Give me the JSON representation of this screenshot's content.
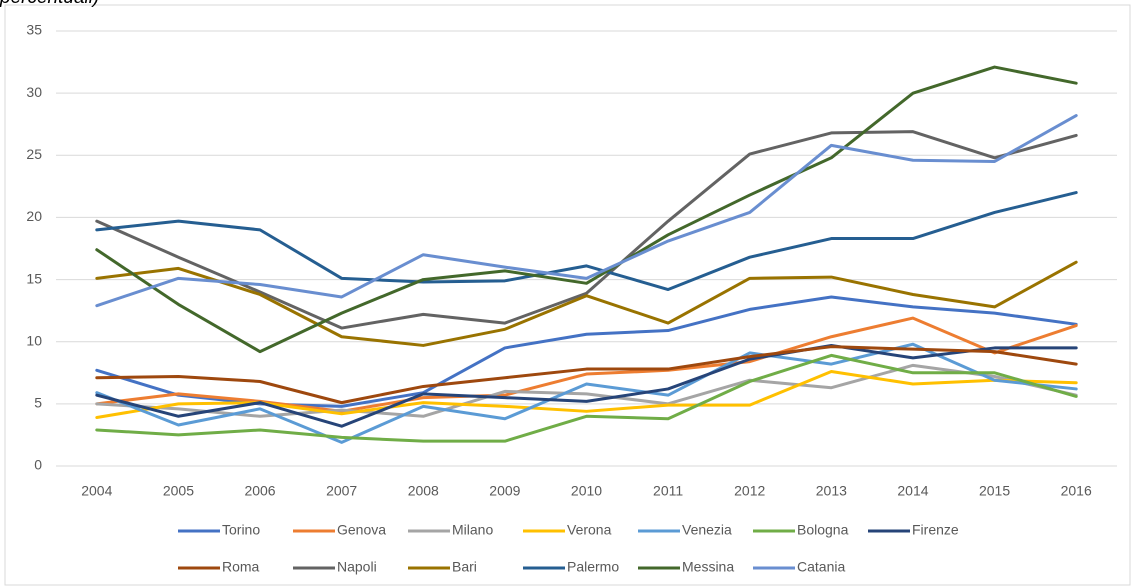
{
  "chart_data": {
    "type": "line",
    "title": "percentuali)",
    "categories": [
      "2004",
      "2005",
      "2006",
      "2007",
      "2008",
      "2009",
      "2010",
      "2011",
      "2012",
      "2013",
      "2014",
      "2015",
      "2016"
    ],
    "ylim": [
      0,
      35
    ],
    "yticks": [
      0,
      5,
      10,
      15,
      20,
      25,
      30,
      35
    ],
    "grid": true,
    "series": [
      {
        "name": "Torino",
        "color": "#4472c4",
        "values": [
          7.7,
          5.7,
          5.0,
          4.8,
          5.9,
          9.5,
          10.6,
          10.9,
          12.6,
          13.6,
          12.8,
          12.3,
          11.4
        ]
      },
      {
        "name": "Genova",
        "color": "#ed7d31",
        "values": [
          5.0,
          5.8,
          5.2,
          4.4,
          5.5,
          5.7,
          7.4,
          7.7,
          8.4,
          10.4,
          11.9,
          9.1,
          11.3
        ]
      },
      {
        "name": "Milano",
        "color": "#a5a5a5",
        "values": [
          5.0,
          4.6,
          4.0,
          4.5,
          4.0,
          6.0,
          5.8,
          5.0,
          6.9,
          6.3,
          8.1,
          7.2,
          5.7
        ]
      },
      {
        "name": "Verona",
        "color": "#ffc000",
        "values": [
          3.9,
          5.0,
          5.1,
          4.2,
          5.1,
          4.8,
          4.4,
          4.9,
          4.9,
          7.6,
          6.6,
          6.9,
          6.7
        ]
      },
      {
        "name": "Venezia",
        "color": "#5b9bd5",
        "values": [
          5.9,
          3.3,
          4.6,
          1.9,
          4.8,
          3.8,
          6.6,
          5.7,
          9.1,
          8.2,
          9.8,
          6.9,
          6.2
        ]
      },
      {
        "name": "Bologna",
        "color": "#70ad47",
        "values": [
          2.9,
          2.5,
          2.9,
          2.3,
          2.0,
          2.0,
          4.0,
          3.8,
          6.8,
          8.9,
          7.5,
          7.5,
          5.6
        ]
      },
      {
        "name": "Firenze",
        "color": "#264478",
        "values": [
          5.7,
          4.0,
          5.1,
          3.2,
          5.8,
          5.5,
          5.2,
          6.2,
          8.6,
          9.7,
          8.7,
          9.5,
          9.5
        ]
      },
      {
        "name": "Roma",
        "color": "#9e480e",
        "values": [
          7.1,
          7.2,
          6.8,
          5.1,
          6.4,
          7.1,
          7.8,
          7.8,
          8.8,
          9.6,
          9.4,
          9.2,
          8.2
        ]
      },
      {
        "name": "Napoli",
        "color": "#636363",
        "values": [
          19.7,
          16.8,
          14.0,
          11.1,
          12.2,
          11.5,
          13.9,
          19.7,
          25.1,
          26.8,
          26.9,
          24.8,
          26.6
        ]
      },
      {
        "name": "Bari",
        "color": "#997300",
        "values": [
          15.1,
          15.9,
          13.8,
          10.4,
          9.7,
          11.0,
          13.7,
          11.5,
          15.1,
          15.2,
          13.8,
          12.8,
          16.4
        ]
      },
      {
        "name": "Palermo",
        "color": "#255e91",
        "values": [
          19.0,
          19.7,
          19.0,
          15.1,
          14.8,
          14.9,
          16.1,
          14.2,
          16.8,
          18.3,
          18.3,
          20.4,
          22.0
        ]
      },
      {
        "name": "Messina",
        "color": "#43682b",
        "values": [
          17.4,
          13.0,
          9.2,
          12.3,
          15.0,
          15.7,
          14.7,
          18.6,
          21.8,
          24.8,
          30.0,
          32.1,
          30.8
        ]
      },
      {
        "name": "Catania",
        "color": "#698ed0",
        "values": [
          12.9,
          15.1,
          14.6,
          13.6,
          17.0,
          16.0,
          15.1,
          18.1,
          20.4,
          25.8,
          24.6,
          24.5,
          28.2
        ]
      }
    ]
  }
}
